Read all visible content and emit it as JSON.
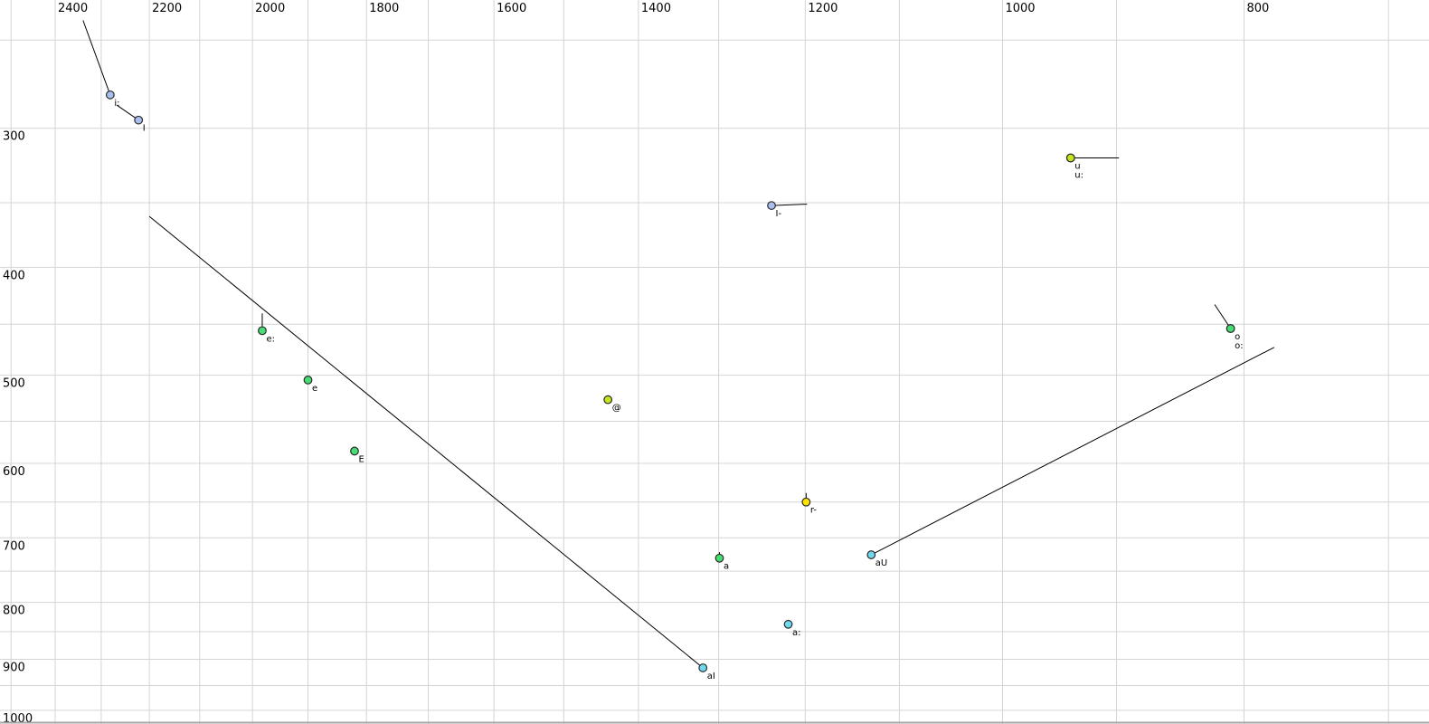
{
  "chart_data": {
    "type": "scatter",
    "title": "",
    "x_axis": {
      "position": "top",
      "scale": "log",
      "direction": "reversed",
      "major_ticks": [
        2400,
        2200,
        2000,
        1800,
        1600,
        1400,
        1200,
        1000,
        800
      ],
      "minor_step": 100,
      "minor_range": [
        700,
        2500
      ]
    },
    "y_axis": {
      "position": "left",
      "scale": "log",
      "direction": "reversed",
      "major_ticks": [
        300,
        400,
        500,
        600,
        700,
        800,
        900,
        1000
      ],
      "minor_step": 50,
      "minor_range": [
        250,
        1000
      ]
    },
    "points": [
      {
        "label": "i:",
        "f2": 2281,
        "f1": 280,
        "color": "blue",
        "row": 0,
        "tail": {
          "f2": 2339,
          "f1": 240
        }
      },
      {
        "label": "I",
        "f2": 2222,
        "f1": 295,
        "color": "blue",
        "row": 0,
        "tail": {
          "f2": 2267,
          "f1": 286
        }
      },
      {
        "label": "I-",
        "f2": 1238,
        "f1": 352,
        "color": "blue",
        "row": 0,
        "tail": {
          "f2": 1198,
          "f1": 351
        }
      },
      {
        "label": "u",
        "f2": 939,
        "f1": 319,
        "color": "chartreuse",
        "row": 0,
        "tail": {
          "f2": 898,
          "f1": 319
        }
      },
      {
        "label": "u:",
        "f2": 939,
        "f1": 319,
        "color": "chartreuse",
        "row": 1
      },
      {
        "label": "e:",
        "f2": 1982,
        "f1": 456,
        "color": "green",
        "row": 0,
        "tail": {
          "f2": 1982,
          "f1": 440
        }
      },
      {
        "label": "e",
        "f2": 1900,
        "f1": 505,
        "color": "green",
        "row": 0
      },
      {
        "label": "E",
        "f2": 1820,
        "f1": 585,
        "color": "green",
        "row": 0
      },
      {
        "label": "@",
        "f2": 1440,
        "f1": 526,
        "color": "chartreuse",
        "row": 0
      },
      {
        "label": "r-",
        "f2": 1199,
        "f1": 650,
        "color": "yellow",
        "row": 0,
        "tail": {
          "f2": 1199,
          "f1": 638
        }
      },
      {
        "label": "a",
        "f2": 1299,
        "f1": 730,
        "color": "green",
        "row": 0,
        "tail": {
          "f2": 1299,
          "f1": 721
        }
      },
      {
        "label": "a:",
        "f2": 1219,
        "f1": 837,
        "color": "cyan",
        "row": 0
      },
      {
        "label": "aI",
        "f2": 1319,
        "f1": 916,
        "color": "cyan",
        "row": 0,
        "tail": {
          "f2": 2200,
          "f1": 360
        }
      },
      {
        "label": "aU",
        "f2": 1129,
        "f1": 725,
        "color": "cyan",
        "row": 0,
        "tail": {
          "f2": 778,
          "f1": 472
        }
      },
      {
        "label": "o",
        "f2": 810,
        "f1": 454,
        "color": "green",
        "row": 0,
        "tail": {
          "f2": 822,
          "f1": 432
        }
      },
      {
        "label": "o:",
        "f2": 810,
        "f1": 454,
        "color": "green",
        "row": 1
      }
    ]
  },
  "colors": {
    "blue": "#a9bfee",
    "chartreuse": "#c3e51c",
    "green": "#46dd74",
    "yellow": "#ffe400",
    "cyan": "#6fd8ec",
    "point_stroke": "#2b2b2b",
    "grid": "#d4d4d4",
    "trajectory": "#000000",
    "bottom_border": "#a6a6a6",
    "background": "#ffffff"
  }
}
